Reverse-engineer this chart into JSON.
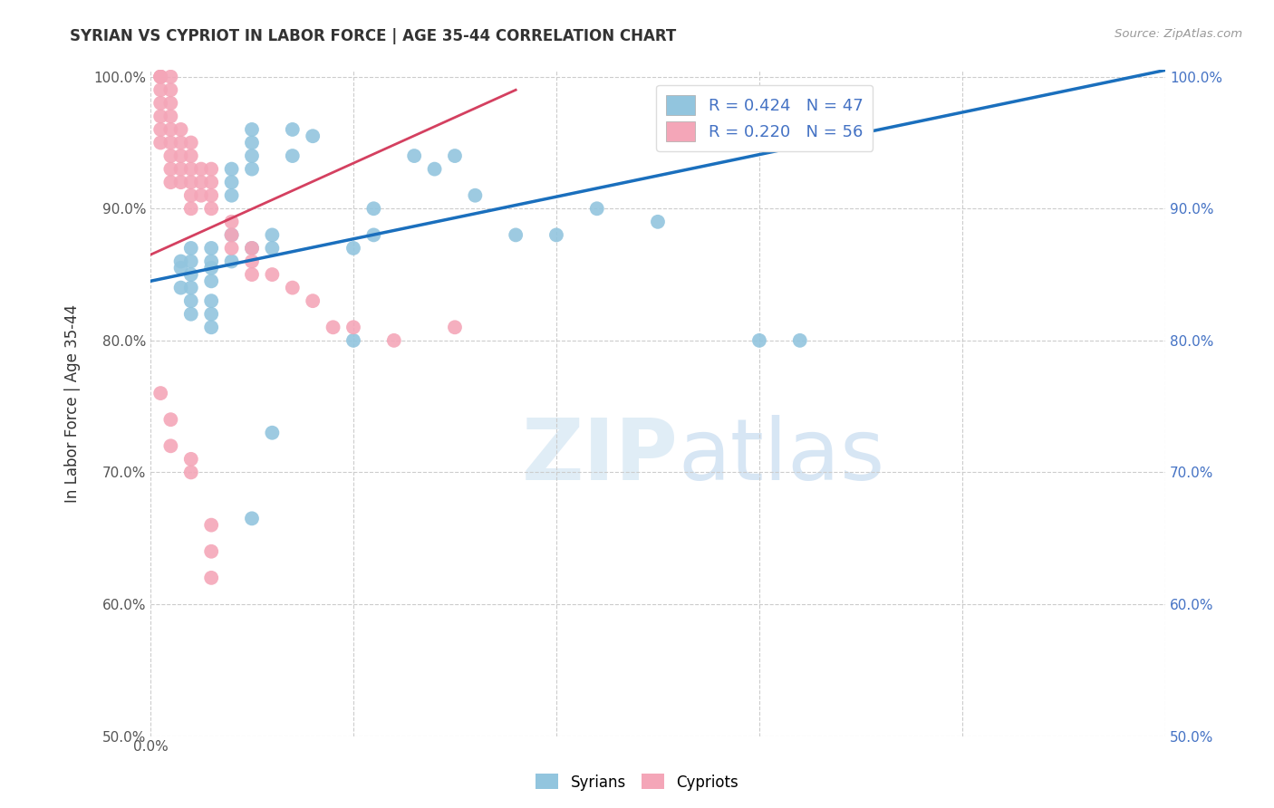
{
  "title": "SYRIAN VS CYPRIOT IN LABOR FORCE | AGE 35-44 CORRELATION CHART",
  "source": "Source: ZipAtlas.com",
  "ylabel": "In Labor Force | Age 35-44",
  "xlim": [
    0.0,
    0.05
  ],
  "ylim": [
    0.5,
    1.005
  ],
  "xticks": [
    0.0,
    0.01,
    0.02,
    0.03,
    0.04,
    0.05
  ],
  "yticks": [
    0.5,
    0.6,
    0.7,
    0.8,
    0.9,
    1.0
  ],
  "xticklabels": [
    "0.0%",
    "",
    "",
    "",
    "",
    ""
  ],
  "yticklabels_left": [
    "50.0%",
    "60.0%",
    "70.0%",
    "80.0%",
    "90.0%",
    "100.0%"
  ],
  "yticklabels_right": [
    "50.0%",
    "60.0%",
    "70.0%",
    "80.0%",
    "90.0%",
    "100.0%"
  ],
  "R_blue": 0.424,
  "N_blue": 47,
  "R_pink": 0.22,
  "N_pink": 56,
  "blue_color": "#92c5de",
  "pink_color": "#f4a6b8",
  "trend_blue_color": "#1a6fbd",
  "trend_pink_color": "#d44060",
  "watermark_zip": "ZIP",
  "watermark_atlas": "atlas",
  "legend_syrians": "Syrians",
  "legend_cypriots": "Cypriots",
  "syrians_x": [
    0.0015,
    0.0015,
    0.0015,
    0.002,
    0.002,
    0.002,
    0.002,
    0.002,
    0.002,
    0.003,
    0.003,
    0.003,
    0.003,
    0.003,
    0.003,
    0.003,
    0.004,
    0.004,
    0.004,
    0.004,
    0.004,
    0.005,
    0.005,
    0.005,
    0.005,
    0.005,
    0.006,
    0.006,
    0.007,
    0.007,
    0.008,
    0.01,
    0.01,
    0.011,
    0.011,
    0.013,
    0.014,
    0.015,
    0.016,
    0.018,
    0.02,
    0.022,
    0.025,
    0.03,
    0.032,
    0.005,
    0.006
  ],
  "syrians_y": [
    0.86,
    0.855,
    0.84,
    0.87,
    0.86,
    0.85,
    0.84,
    0.83,
    0.82,
    0.87,
    0.86,
    0.855,
    0.845,
    0.83,
    0.82,
    0.81,
    0.93,
    0.92,
    0.91,
    0.88,
    0.86,
    0.96,
    0.95,
    0.94,
    0.93,
    0.87,
    0.88,
    0.87,
    0.96,
    0.94,
    0.955,
    0.87,
    0.8,
    0.9,
    0.88,
    0.94,
    0.93,
    0.94,
    0.91,
    0.88,
    0.88,
    0.9,
    0.89,
    0.8,
    0.8,
    0.665,
    0.73
  ],
  "cypriots_x": [
    0.0005,
    0.0005,
    0.0005,
    0.0005,
    0.0005,
    0.0005,
    0.0005,
    0.0005,
    0.001,
    0.001,
    0.001,
    0.001,
    0.001,
    0.001,
    0.001,
    0.001,
    0.001,
    0.0015,
    0.0015,
    0.0015,
    0.0015,
    0.0015,
    0.002,
    0.002,
    0.002,
    0.002,
    0.002,
    0.002,
    0.0025,
    0.0025,
    0.0025,
    0.003,
    0.003,
    0.003,
    0.003,
    0.004,
    0.004,
    0.004,
    0.005,
    0.005,
    0.005,
    0.006,
    0.007,
    0.008,
    0.009,
    0.01,
    0.012,
    0.015,
    0.0005,
    0.001,
    0.001,
    0.002,
    0.002,
    0.003,
    0.003,
    0.003
  ],
  "cypriots_y": [
    1.0,
    1.0,
    1.0,
    0.99,
    0.98,
    0.97,
    0.96,
    0.95,
    1.0,
    0.99,
    0.98,
    0.97,
    0.96,
    0.95,
    0.94,
    0.93,
    0.92,
    0.96,
    0.95,
    0.94,
    0.93,
    0.92,
    0.95,
    0.94,
    0.93,
    0.92,
    0.91,
    0.9,
    0.93,
    0.92,
    0.91,
    0.93,
    0.92,
    0.91,
    0.9,
    0.89,
    0.88,
    0.87,
    0.87,
    0.86,
    0.85,
    0.85,
    0.84,
    0.83,
    0.81,
    0.81,
    0.8,
    0.81,
    0.76,
    0.74,
    0.72,
    0.71,
    0.7,
    0.66,
    0.64,
    0.62
  ],
  "blue_trendline_x": [
    0.0,
    0.05
  ],
  "blue_trendline_y": [
    0.845,
    1.005
  ],
  "pink_trendline_x": [
    0.0,
    0.018
  ],
  "pink_trendline_y": [
    0.865,
    0.99
  ]
}
